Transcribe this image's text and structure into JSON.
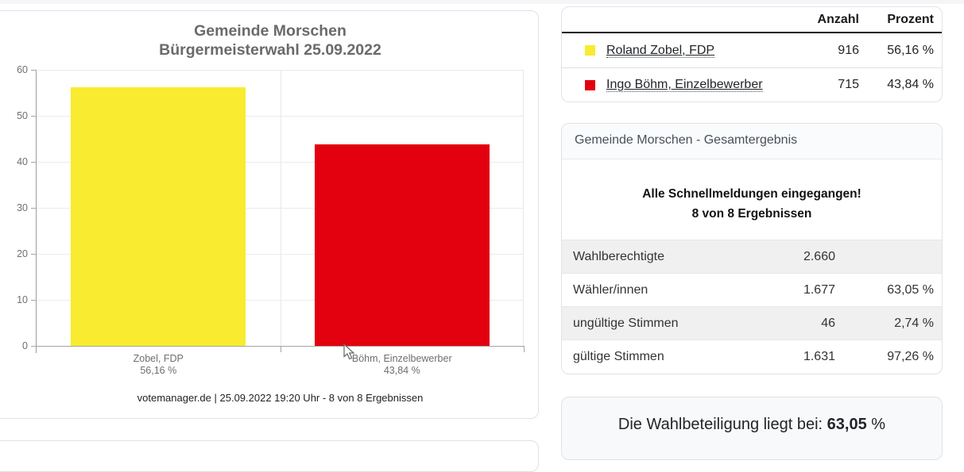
{
  "chart": {
    "title_line1": "Gemeinde Morschen",
    "title_line2": "Bürgermeisterwahl 25.09.2022",
    "footer": "votemanager.de | 25.09.2022 19:20 Uhr - 8 von 8 Ergebnissen"
  },
  "chart_data": {
    "type": "bar",
    "title": "Gemeinde Morschen Bürgermeisterwahl 25.09.2022",
    "categories": [
      "Zobel, FDP",
      "Böhm, Einzelbewerber"
    ],
    "values": [
      56.16,
      43.84
    ],
    "value_labels": [
      "56,16 %",
      "43,84 %"
    ],
    "colors": [
      "#f9eb2f",
      "#e3000f"
    ],
    "xlabel": "",
    "ylabel": "",
    "ylim": [
      0,
      60
    ],
    "yticks": [
      0,
      10,
      20,
      30,
      40,
      50,
      60
    ],
    "grid": true,
    "legend_position": "none"
  },
  "results_table": {
    "headers": {
      "anzahl": "Anzahl",
      "prozent": "Prozent"
    },
    "rows": [
      {
        "swatch_color": "#f9eb2f",
        "name": "Roland Zobel, FDP",
        "anzahl": "916",
        "prozent": "56,16 %"
      },
      {
        "swatch_color": "#e3000f",
        "name": "Ingo Böhm, Einzelbewerber",
        "anzahl": "715",
        "prozent": "43,84 %"
      }
    ]
  },
  "summary_card": {
    "header": "Gemeinde Morschen - Gesamtergebnis",
    "message_line1": "Alle Schnellmeldungen eingegangen!",
    "message_line2": "8 von 8 Ergebnissen",
    "stats": [
      {
        "label": "Wahlberechtigte",
        "value": "2.660",
        "percent": ""
      },
      {
        "label": "Wähler/innen",
        "value": "1.677",
        "percent": "63,05 %"
      },
      {
        "label": "ungültige Stimmen",
        "value": "46",
        "percent": "2,74 %"
      },
      {
        "label": "gültige Stimmen",
        "value": "1.631",
        "percent": "97,26 %"
      }
    ]
  },
  "turnout": {
    "prefix": "Die Wahlbeteiligung liegt bei: ",
    "value": "63,05",
    "suffix": " %"
  }
}
